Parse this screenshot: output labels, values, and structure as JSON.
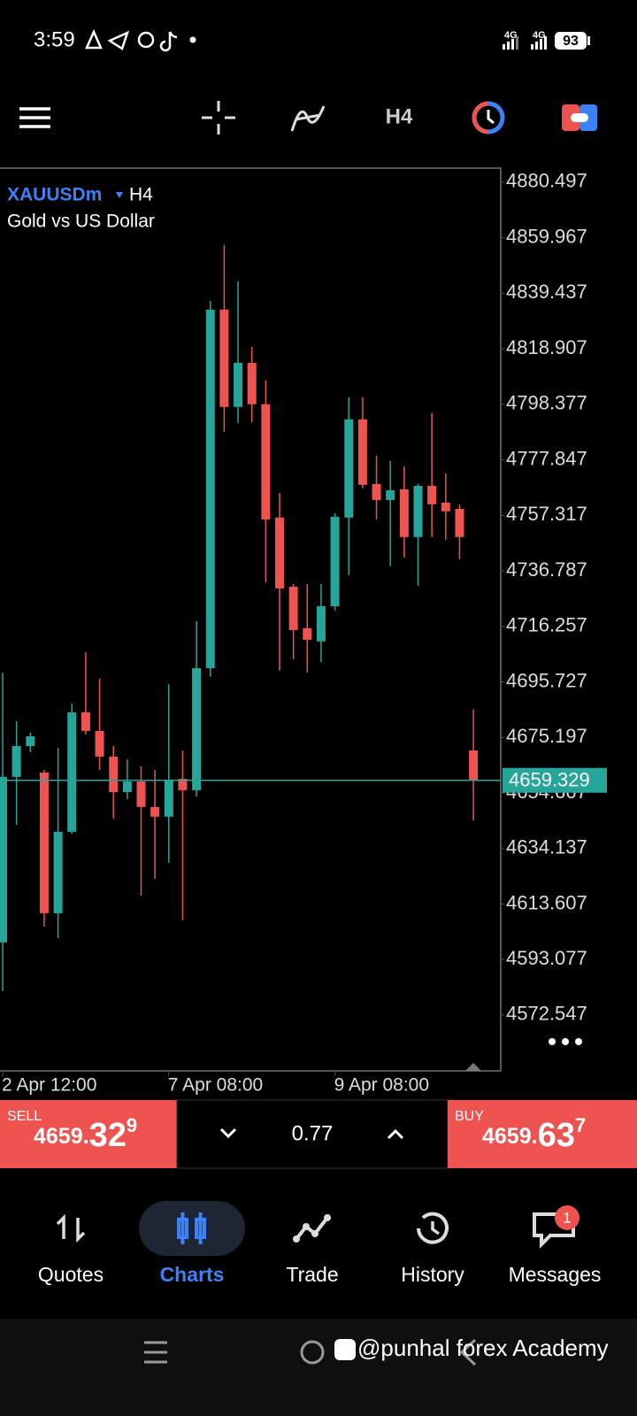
{
  "status_bar": {
    "time": "3:59",
    "network_1": "4G",
    "network_2": "4G",
    "battery": "93"
  },
  "toolbar": {
    "timeframe": "H4"
  },
  "symbol": {
    "name": "XAUUSDm",
    "timeframe": "H4",
    "description": "Gold vs US Dollar"
  },
  "chart_data": {
    "type": "candlestick",
    "up_color": "#26a69a",
    "down_color": "#ef5350",
    "categories": [
      "2 Apr 12:00",
      null,
      null,
      null,
      null,
      null,
      null,
      null,
      null,
      null,
      null,
      null,
      "7 Apr 08:00",
      null,
      null,
      null,
      null,
      null,
      null,
      null,
      null,
      null,
      null,
      null,
      "9 Apr 08:00",
      null,
      null,
      null,
      null,
      null,
      null,
      null,
      null,
      null,
      null
    ],
    "open": [
      4599.4,
      4660.6,
      4672.0,
      4662.2,
      4610.2,
      4640.3,
      4684.5,
      4677.6,
      4668.1,
      4655.0,
      4658.9,
      4649.5,
      4645.9,
      4659.9,
      4655.7,
      4700.8,
      4833.4,
      4797.4,
      4813.7,
      4798.4,
      4756.5,
      4730.9,
      4715.6,
      4710.7,
      4723.7,
      4756.5,
      4792.8,
      4768.9,
      4763.0,
      4766.9,
      4749.3,
      4768.2,
      4762.0,
      4759.7,
      4670.4
    ],
    "high": [
      4699.2,
      4681.2,
      4676.9,
      4663.2,
      4671.4,
      4687.7,
      4706.7,
      4696.9,
      4672.0,
      4667.1,
      4664.5,
      4663.2,
      4694.9,
      4670.4,
      4718.2,
      4836.6,
      4857.3,
      4843.8,
      4819.6,
      4807.2,
      4765.6,
      4731.9,
      4731.9,
      4731.9,
      4758.1,
      4801.0,
      4801.0,
      4779.4,
      4777.4,
      4775.4,
      4769.0,
      4795.1,
      4772.8,
      4761.4,
      4685.5
    ],
    "low": [
      4581.4,
      4642.9,
      4669.7,
      4605.3,
      4601.0,
      4639.6,
      4676.3,
      4663.2,
      4645.2,
      4652.4,
      4616.7,
      4622.9,
      4628.8,
      4607.6,
      4653.4,
      4697.6,
      4788.2,
      4791.5,
      4791.8,
      4732.6,
      4699.9,
      4704.1,
      4699.2,
      4703.1,
      4722.1,
      4735.2,
      4767.3,
      4755.8,
      4738.5,
      4741.7,
      4731.3,
      4749.3,
      4748.3,
      4741.1,
      4644.5
    ],
    "close": [
      4660.6,
      4672.0,
      4675.6,
      4610.2,
      4640.3,
      4684.5,
      4677.6,
      4668.1,
      4655.0,
      4658.9,
      4649.5,
      4645.9,
      4659.3,
      4655.7,
      4700.8,
      4833.4,
      4797.4,
      4813.7,
      4798.4,
      4755.8,
      4730.3,
      4714.9,
      4711.3,
      4723.7,
      4756.8,
      4792.8,
      4768.6,
      4763.0,
      4766.6,
      4749.3,
      4768.2,
      4761.4,
      4758.8,
      4749.3,
      4659.3
    ],
    "ylim": [
      4551.9,
      4885.7
    ],
    "yticks": [
      4880.497,
      4859.967,
      4839.437,
      4818.907,
      4798.377,
      4777.847,
      4757.317,
      4736.787,
      4716.257,
      4695.727,
      4675.197,
      4654.667,
      4634.137,
      4613.607,
      4593.077,
      4572.547
    ],
    "current_price": 4659.329,
    "current_price_color": "#26a69a"
  },
  "trade_panel": {
    "sell": {
      "label": "SELL",
      "price_head": "4659.",
      "price_big": "32",
      "price_sup": "9"
    },
    "volume": "0.77",
    "buy": {
      "label": "BUY",
      "price_head": "4659.",
      "price_big": "63",
      "price_sup": "7"
    }
  },
  "nav": {
    "items": [
      "Quotes",
      "Charts",
      "Trade",
      "History",
      "Messages"
    ],
    "badge": "1"
  },
  "watermark": "@punhal forex Academy"
}
